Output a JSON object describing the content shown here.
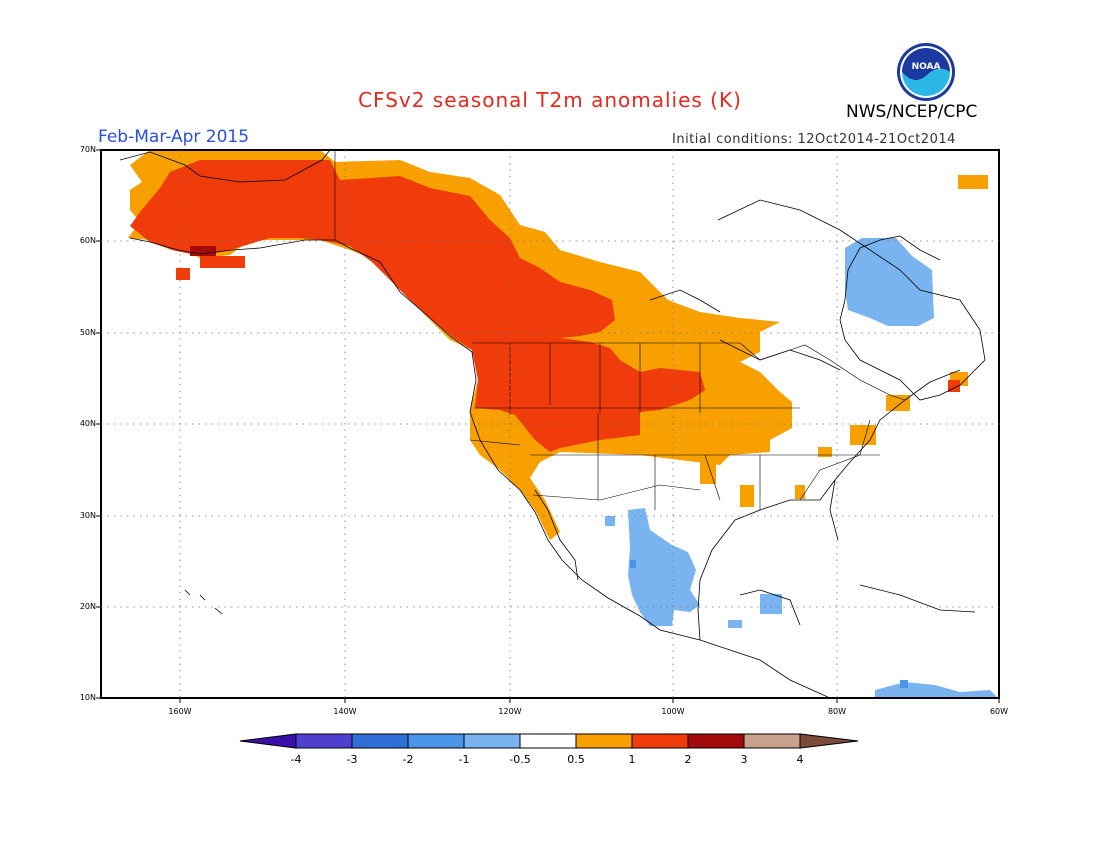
{
  "title": "CFSv2 seasonal T2m anomalies (K)",
  "period": "Feb-Mar-Apr 2015",
  "initial_conditions": "Initial conditions: 12Oct2014-21Oct2014",
  "agency": "NWS/NCEP/CPC",
  "logo_text": "NOAA",
  "lat_labels": [
    "70N",
    "60N",
    "50N",
    "40N",
    "30N",
    "20N",
    "10N"
  ],
  "lon_labels": [
    "160W",
    "140W",
    "120W",
    "100W",
    "80W",
    "60W"
  ],
  "colorbar": {
    "labels": [
      "-4",
      "-3",
      "-2",
      "-1",
      "-0.5",
      "0.5",
      "1",
      "2",
      "3",
      "4"
    ],
    "colors": [
      "#3a0fa8",
      "#4f3fd0",
      "#2f6fd8",
      "#4a95ea",
      "#7ab4f0",
      "#ffffff",
      "#f7a000",
      "#f03c0a",
      "#a50a0a",
      "#c8a08c",
      "#7a4a3a"
    ]
  },
  "anomaly_colors": {
    "warm_1": "#f7a000",
    "warm_2": "#f03c0a",
    "warm_3": "#a50a0a",
    "cool_1": "#7ab4f0",
    "cool_2": "#4a95ea"
  }
}
